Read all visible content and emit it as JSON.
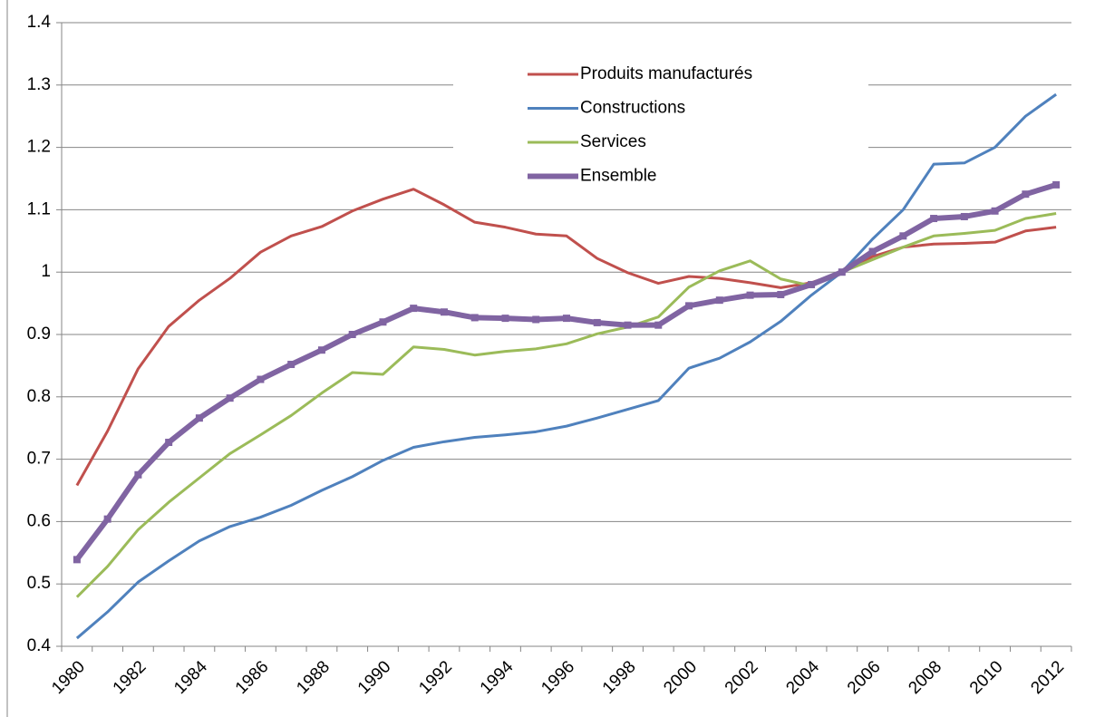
{
  "chart_data": {
    "type": "line",
    "categories": [
      "1980",
      null,
      "1982",
      null,
      "1984",
      null,
      "1986",
      null,
      "1988",
      null,
      "1990",
      null,
      "1992",
      null,
      "1994",
      null,
      "1996",
      null,
      "1998",
      null,
      "2000",
      null,
      "2002",
      null,
      "2004",
      null,
      "2006",
      null,
      "2008",
      null,
      "2010",
      null,
      "2012"
    ],
    "series": [
      {
        "name": "Produits manufacturés",
        "color": "#c0504d",
        "values": [
          0.658,
          0.745,
          0.845,
          0.913,
          0.955,
          0.99,
          1.032,
          1.058,
          1.073,
          1.098,
          1.117,
          1.133,
          1.108,
          1.08,
          1.072,
          1.061,
          1.058,
          1.022,
          0.999,
          0.982,
          0.993,
          0.99,
          0.983,
          0.975,
          0.983,
          1.0,
          1.025,
          1.04,
          1.045,
          1.046,
          1.048,
          1.066,
          1.072
        ]
      },
      {
        "name": "Constructions",
        "color": "#4f81bd",
        "values": [
          0.413,
          0.455,
          0.503,
          0.537,
          0.569,
          0.592,
          0.607,
          0.626,
          0.65,
          0.672,
          0.698,
          0.719,
          0.728,
          0.735,
          0.739,
          0.744,
          0.753,
          0.766,
          0.78,
          0.794,
          0.846,
          0.862,
          0.888,
          0.921,
          0.963,
          1.0,
          1.053,
          1.1,
          1.173,
          1.175,
          1.2,
          1.25,
          1.285
        ]
      },
      {
        "name": "Services",
        "color": "#9bbb59",
        "values": [
          0.479,
          0.528,
          0.587,
          0.631,
          0.67,
          0.709,
          0.739,
          0.77,
          0.806,
          0.839,
          0.836,
          0.88,
          0.876,
          0.867,
          0.873,
          0.877,
          0.885,
          0.901,
          0.912,
          0.928,
          0.976,
          1.002,
          1.018,
          0.989,
          0.978,
          1.0,
          1.02,
          1.04,
          1.058,
          1.062,
          1.067,
          1.086,
          1.094
        ]
      },
      {
        "name": "Ensemble",
        "color": "#8064a2",
        "values": [
          0.539,
          0.604,
          0.675,
          0.727,
          0.766,
          0.798,
          0.828,
          0.852,
          0.875,
          0.9,
          0.92,
          0.942,
          0.936,
          0.927,
          0.926,
          0.924,
          0.926,
          0.919,
          0.915,
          0.915,
          0.946,
          0.955,
          0.963,
          0.964,
          0.98,
          1.0,
          1.033,
          1.058,
          1.086,
          1.089,
          1.098,
          1.125,
          1.14
        ]
      }
    ],
    "ylim": [
      0.4,
      1.4
    ],
    "yticks": [
      0.4,
      0.5,
      0.6,
      0.7,
      0.8,
      0.9,
      1,
      1.1,
      1.2,
      1.3,
      1.4
    ],
    "grid": true,
    "legend": "top"
  }
}
